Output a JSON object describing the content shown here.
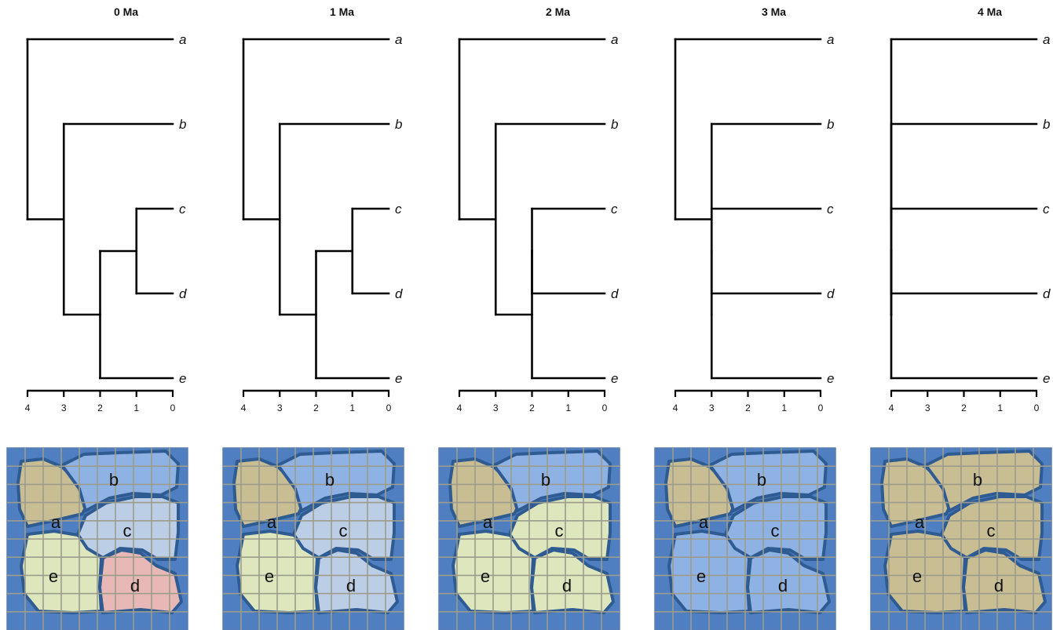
{
  "colors": {
    "ocean": "#4f7fc0",
    "ocean_border": "#2f5b93",
    "grid": "#9c9c8c",
    "tan": "#c9bd94",
    "blue": "#8fb2e4",
    "light_blue": "#bccde6",
    "light_green": "#dde6bd",
    "pink": "#e8b8b6"
  },
  "axis_ticks": [
    "4",
    "3",
    "2",
    "1",
    "0"
  ],
  "tips": [
    "a",
    "b",
    "c",
    "d",
    "e"
  ],
  "panels": [
    {
      "title": "0 Ma",
      "region_labels": [
        "a",
        "b",
        "c",
        "d",
        "e"
      ],
      "region_colors": {
        "a": "tan",
        "b": "blue",
        "c": "light_blue",
        "d": "pink",
        "e": "light_green"
      },
      "tree": {
        "root_age": 4,
        "children": [
          {
            "tip": "a"
          },
          {
            "age": 3,
            "children": [
              {
                "tip": "b"
              },
              {
                "age": 2,
                "children": [
                  {
                    "age": 1,
                    "children": [
                      {
                        "tip": "c"
                      },
                      {
                        "tip": "d"
                      }
                    ]
                  },
                  {
                    "tip": "e"
                  }
                ]
              }
            ]
          }
        ]
      }
    },
    {
      "title": "1 Ma",
      "region_labels": [
        "a",
        "b",
        "c",
        "d",
        "e"
      ],
      "region_colors": {
        "a": "tan",
        "b": "blue",
        "c": "light_blue",
        "d": "light_blue",
        "e": "light_green"
      },
      "tree": {
        "root_age": 4,
        "children": [
          {
            "tip": "a"
          },
          {
            "age": 3,
            "children": [
              {
                "tip": "b"
              },
              {
                "age": 2,
                "children": [
                  {
                    "age": 1,
                    "children": [
                      {
                        "tip": "c"
                      },
                      {
                        "tip": "d"
                      }
                    ]
                  },
                  {
                    "tip": "e"
                  }
                ]
              }
            ]
          }
        ]
      }
    },
    {
      "title": "2 Ma",
      "region_labels": [
        "a",
        "b",
        "c",
        "d",
        "e"
      ],
      "region_colors": {
        "a": "tan",
        "b": "blue",
        "c": "light_green",
        "d": "light_green",
        "e": "light_green"
      },
      "tree": {
        "root_age": 4,
        "children": [
          {
            "tip": "a"
          },
          {
            "age": 3,
            "children": [
              {
                "tip": "b"
              },
              {
                "age": 2,
                "children": [
                  {
                    "age": 2,
                    "children": [
                      {
                        "tip": "c"
                      },
                      {
                        "tip": "d"
                      }
                    ]
                  },
                  {
                    "tip": "e"
                  }
                ]
              }
            ]
          }
        ]
      }
    },
    {
      "title": "3 Ma",
      "region_labels": [
        "a",
        "b",
        "c",
        "d",
        "e"
      ],
      "region_colors": {
        "a": "tan",
        "b": "blue",
        "c": "blue",
        "d": "blue",
        "e": "blue"
      },
      "tree": {
        "root_age": 4,
        "children": [
          {
            "tip": "a"
          },
          {
            "age": 3,
            "children": [
              {
                "tip": "b"
              },
              {
                "age": 3,
                "children": [
                  {
                    "age": 3,
                    "children": [
                      {
                        "tip": "c"
                      },
                      {
                        "tip": "d"
                      }
                    ]
                  },
                  {
                    "tip": "e"
                  }
                ]
              }
            ]
          }
        ]
      }
    },
    {
      "title": "4 Ma",
      "region_labels": [
        "a",
        "b",
        "c",
        "d",
        "e"
      ],
      "region_colors": {
        "a": "tan",
        "b": "tan",
        "c": "tan",
        "d": "tan",
        "e": "tan"
      },
      "tree": {
        "root_age": 4,
        "children": [
          {
            "tip": "a"
          },
          {
            "age": 4,
            "children": [
              {
                "tip": "b"
              },
              {
                "age": 4,
                "children": [
                  {
                    "age": 4,
                    "children": [
                      {
                        "tip": "c"
                      },
                      {
                        "tip": "d"
                      }
                    ]
                  },
                  {
                    "tip": "e"
                  }
                ]
              }
            ]
          }
        ]
      }
    }
  ]
}
